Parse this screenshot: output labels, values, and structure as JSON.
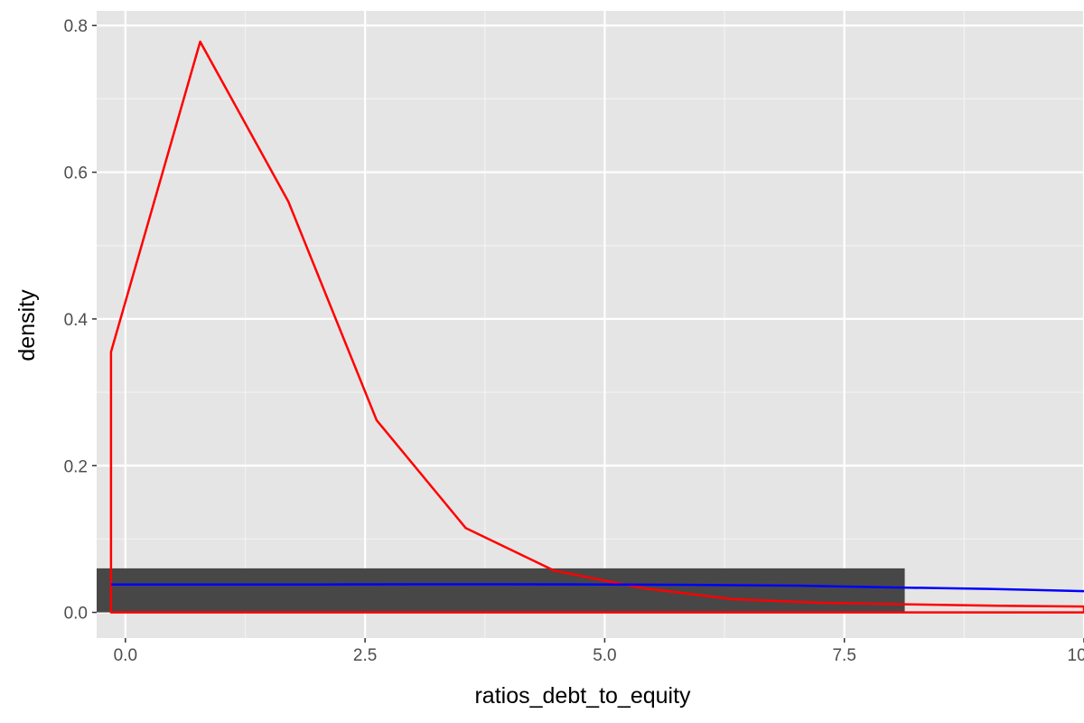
{
  "chart_data": {
    "type": "area",
    "title": "",
    "xlabel": "ratios_debt_to_equity",
    "ylabel": "density",
    "xlim": [
      -0.3,
      10.0
    ],
    "ylim": [
      -0.035,
      0.82
    ],
    "x_ticks": [
      {
        "value": 0.0,
        "label": "0.0"
      },
      {
        "value": 2.5,
        "label": "2.5"
      },
      {
        "value": 5.0,
        "label": "5.0"
      },
      {
        "value": 7.5,
        "label": "7.5"
      },
      {
        "value": 10.0,
        "label": "10.0"
      }
    ],
    "y_ticks": [
      {
        "value": 0.0,
        "label": "0.0"
      },
      {
        "value": 0.2,
        "label": "0.2"
      },
      {
        "value": 0.4,
        "label": "0.4"
      },
      {
        "value": 0.6,
        "label": "0.6"
      },
      {
        "value": 0.8,
        "label": "0.8"
      }
    ],
    "grid": true,
    "background_color": "#e5e5e5",
    "histogram": {
      "color": "#474747",
      "bars": [
        {
          "x0": -0.3,
          "x1": 8.13,
          "value": 0.06
        }
      ]
    },
    "series": [
      {
        "color": "#ff0000",
        "style": "outline",
        "x": [
          -0.15,
          -0.15,
          0.78,
          1.7,
          2.62,
          3.55,
          4.47,
          5.4,
          6.33,
          7.25,
          8.17,
          9.1,
          10.0,
          10.0
        ],
        "y": [
          0.0,
          0.355,
          0.778,
          0.56,
          0.262,
          0.115,
          0.057,
          0.033,
          0.018,
          0.013,
          0.011,
          0.009,
          0.008,
          0.0
        ]
      },
      {
        "color": "#0000ff",
        "style": "line",
        "x": [
          -0.15,
          1.0,
          2.0,
          3.0,
          4.0,
          5.0,
          6.0,
          7.0,
          8.0,
          9.0,
          10.0
        ],
        "y": [
          0.038,
          0.038,
          0.038,
          0.0383,
          0.0383,
          0.038,
          0.0375,
          0.0365,
          0.034,
          0.032,
          0.029
        ]
      }
    ]
  }
}
